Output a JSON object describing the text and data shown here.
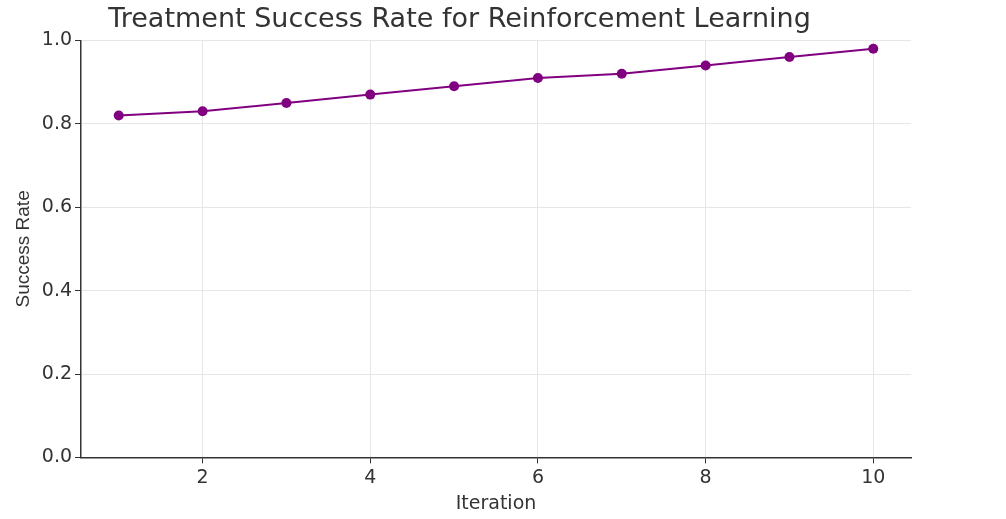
{
  "chart_data": {
    "type": "line",
    "title": "Treatment Success Rate for Reinforcement Learning",
    "xlabel": "Iteration",
    "ylabel": "Success Rate",
    "x": [
      1,
      2,
      3,
      4,
      5,
      6,
      7,
      8,
      9,
      10
    ],
    "series": [
      {
        "color": "#800080",
        "values": [
          0.82,
          0.83,
          0.85,
          0.87,
          0.89,
          0.91,
          0.92,
          0.94,
          0.96,
          0.98
        ]
      }
    ],
    "xlim": [
      0.55,
      10.45
    ],
    "xticks": [
      2,
      4,
      6,
      8,
      10
    ],
    "ylim": [
      0,
      1
    ],
    "yticks": [
      {
        "value": 0,
        "label": "0.0"
      },
      0.2,
      0.4,
      0.6,
      0.8,
      {
        "value": 1,
        "label": "1.0"
      }
    ],
    "grid": true,
    "legend": false,
    "marker": "circle",
    "line_style": "solid"
  }
}
